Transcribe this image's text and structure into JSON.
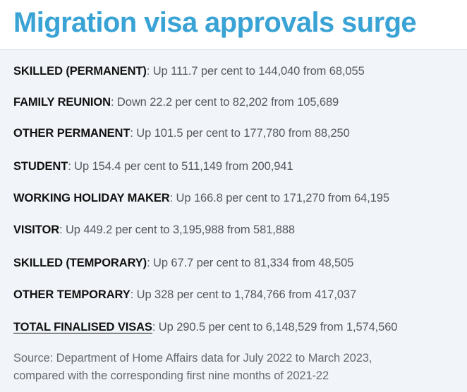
{
  "title": "Migration visa approvals surge",
  "items": [
    {
      "label": "SKILLED (PERMANENT)",
      "text": ": Up 111.7 per cent to 144,040 from 68,055"
    },
    {
      "label": "FAMILY REUNION",
      "text": ": Down 22.2 per cent to 82,202 from 105,689"
    },
    {
      "label": "OTHER PERMANENT",
      "text": ": Up 101.5 per cent to 177,780 from 88,250"
    },
    {
      "label": "STUDENT",
      "text": ": Up 154.4 per cent to 511,149 from 200,941"
    },
    {
      "label": "WORKING HOLIDAY MAKER",
      "text": ": Up 166.8 per cent to 171,270 from 64,195"
    },
    {
      "label": "VISITOR",
      "text": ": Up 449.2 per cent to 3,195,988 from 581,888"
    },
    {
      "label": "SKILLED (TEMPORARY)",
      "text": ": Up 67.7 per cent to 81,334 from 48,505"
    },
    {
      "label": "OTHER TEMPORARY",
      "text": ": Up 328 per cent to 1,784,766 from 417,037"
    },
    {
      "label": "TOTAL FINALISED VISAS",
      "text": ": Up 290.5 per cent to 6,148,529 from 1,574,560"
    }
  ],
  "source": {
    "line1": "Source: Department of Home Affairs data for July 2022 to March 2023,",
    "line2": "compared with the corresponding first nine months of 2021-22"
  }
}
